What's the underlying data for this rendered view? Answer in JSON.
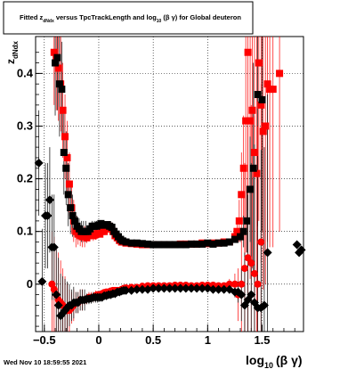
{
  "title": {
    "prefix": "Fitted  z",
    "sub": "dNdx",
    "mid": "  versus TpcTrackLength and log",
    "sub2": "10",
    "suffix": " (β γ) for Global deuteron"
  },
  "timestamp": "Wed Nov 10 18:59:55 2021",
  "ylabel": {
    "main": "z",
    "sub": "dNdx"
  },
  "xlabel": {
    "main": "log",
    "sub": "10",
    "rest": "(β γ)"
  },
  "colors": {
    "red": "#ff0000",
    "black": "#000000",
    "grid": "#000000"
  },
  "chart_data": {
    "type": "scatter",
    "title": "Fitted z_dNdx versus TpcTrackLength and log10(βγ) for Global deuteron",
    "xlabel": "log10(β γ)",
    "ylabel": "z_dNdx",
    "xlim": [
      -0.58,
      1.88
    ],
    "ylim": [
      -0.09,
      0.47
    ],
    "xticks": [
      -0.5,
      0,
      0.5,
      1,
      1.5
    ],
    "xtick_labels": [
      "−0.5",
      "0",
      "0.5",
      "1",
      "1.5"
    ],
    "yticks": [
      0,
      0.1,
      0.2,
      0.3,
      0.4
    ],
    "ytick_labels": [
      "0",
      "0.1",
      "0.2",
      "0.3",
      "0.4"
    ],
    "grid": true,
    "series": [
      {
        "color": "red",
        "marker": "square",
        "x": [
          -0.41,
          -0.39,
          -0.37,
          -0.35,
          -0.33,
          -0.31,
          -0.29,
          -0.27,
          -0.25,
          -0.23,
          -0.21,
          -0.19,
          -0.17,
          -0.15,
          -0.13,
          -0.11,
          -0.09,
          -0.07,
          -0.05,
          -0.03,
          -0.01,
          0.01,
          0.03,
          0.05,
          0.07,
          0.09,
          0.11,
          0.13,
          0.15,
          0.17,
          0.19,
          0.21,
          0.23,
          0.25,
          0.3,
          0.35,
          0.4,
          0.45,
          0.5,
          0.55,
          0.6,
          0.65,
          0.7,
          0.75,
          0.8,
          0.85,
          0.9,
          0.95,
          1.0,
          1.05,
          1.1,
          1.15,
          1.2,
          1.25,
          1.27,
          1.29,
          1.31,
          1.33,
          1.35,
          1.37,
          1.39,
          1.41,
          1.43,
          1.45,
          1.47,
          1.49,
          1.51,
          1.53,
          1.55,
          1.57,
          1.6,
          1.66
        ],
        "y": [
          0.44,
          0.43,
          0.41,
          0.38,
          0.33,
          0.28,
          0.24,
          0.19,
          0.145,
          0.12,
          0.1,
          0.095,
          0.092,
          0.09,
          0.09,
          0.088,
          0.093,
          0.095,
          0.092,
          0.094,
          0.096,
          0.095,
          0.1,
          0.1,
          0.105,
          0.11,
          0.105,
          0.1,
          0.092,
          0.088,
          0.083,
          0.08,
          0.08,
          0.078,
          0.077,
          0.076,
          0.075,
          0.075,
          0.075,
          0.075,
          0.075,
          0.075,
          0.075,
          0.076,
          0.076,
          0.076,
          0.076,
          0.078,
          0.077,
          0.078,
          0.078,
          0.08,
          0.08,
          0.09,
          0.1,
          0.12,
          0.17,
          0.22,
          0.31,
          0.44,
          0.31,
          0.33,
          0.25,
          0.21,
          0.42,
          0.34,
          0.29,
          0.3,
          0.38,
          0.37,
          0.37,
          0.4
        ],
        "yerr": [
          0.1,
          0.1,
          0.1,
          0.09,
          0.09,
          0.08,
          0.07,
          0.06,
          0.05,
          0.04,
          0.03,
          0.02,
          0.02,
          0.02,
          0.02,
          0.01,
          0.01,
          0.01,
          0.01,
          0.01,
          0.01,
          0.005,
          0.005,
          0.005,
          0.005,
          0.005,
          0.005,
          0.005,
          0.005,
          0.005,
          0.005,
          0.005,
          0.005,
          0.005,
          0.004,
          0.004,
          0.004,
          0.004,
          0.004,
          0.004,
          0.004,
          0.004,
          0.004,
          0.004,
          0.004,
          0.004,
          0.004,
          0.004,
          0.004,
          0.004,
          0.004,
          0.005,
          0.005,
          0.01,
          0.02,
          0.04,
          0.08,
          0.1,
          0.25,
          0.3,
          0.3,
          0.3,
          0.3,
          0.3,
          0.3,
          0.3,
          0.3,
          0.3,
          0.3,
          0.3,
          0.3,
          0.3
        ]
      },
      {
        "color": "black",
        "marker": "square",
        "x": [
          -0.4,
          -0.38,
          -0.36,
          -0.34,
          -0.32,
          -0.3,
          -0.28,
          -0.26,
          -0.24,
          -0.22,
          -0.2,
          -0.18,
          -0.16,
          -0.14,
          -0.12,
          -0.1,
          -0.08,
          -0.06,
          -0.04,
          -0.02,
          0.0,
          0.02,
          0.04,
          0.06,
          0.08,
          0.1,
          0.12,
          0.14,
          0.16,
          0.18,
          0.2,
          0.22,
          0.25,
          0.3,
          0.35,
          0.4,
          0.45,
          0.5,
          0.55,
          0.6,
          0.65,
          0.7,
          0.75,
          0.8,
          0.85,
          0.9,
          0.95,
          1.0,
          1.05,
          1.1,
          1.15,
          1.2,
          1.25,
          1.3,
          1.33,
          1.36,
          1.39,
          1.42,
          1.46,
          1.5
        ],
        "y": [
          0.42,
          0.43,
          0.38,
          0.37,
          0.25,
          0.22,
          0.17,
          0.145,
          0.13,
          0.12,
          0.11,
          0.105,
          0.1,
          0.1,
          0.1,
          0.1,
          0.105,
          0.11,
          0.11,
          0.11,
          0.112,
          0.115,
          0.112,
          0.112,
          0.113,
          0.11,
          0.108,
          0.1,
          0.095,
          0.09,
          0.085,
          0.082,
          0.08,
          0.078,
          0.078,
          0.077,
          0.076,
          0.075,
          0.075,
          0.075,
          0.075,
          0.075,
          0.075,
          0.075,
          0.076,
          0.076,
          0.076,
          0.078,
          0.076,
          0.078,
          0.078,
          0.08,
          0.085,
          0.09,
          0.1,
          0.12,
          0.18,
          0.22,
          0.36,
          0.35
        ],
        "yerr": [
          0.1,
          0.1,
          0.1,
          0.09,
          0.08,
          0.07,
          0.06,
          0.05,
          0.04,
          0.03,
          0.02,
          0.02,
          0.02,
          0.02,
          0.02,
          0.01,
          0.01,
          0.01,
          0.01,
          0.01,
          0.005,
          0.005,
          0.005,
          0.005,
          0.005,
          0.005,
          0.005,
          0.005,
          0.005,
          0.005,
          0.005,
          0.005,
          0.004,
          0.004,
          0.004,
          0.004,
          0.004,
          0.004,
          0.004,
          0.004,
          0.004,
          0.004,
          0.004,
          0.004,
          0.004,
          0.004,
          0.004,
          0.004,
          0.004,
          0.004,
          0.004,
          0.005,
          0.005,
          0.01,
          0.03,
          0.06,
          0.1,
          0.2,
          0.25,
          0.25
        ]
      },
      {
        "color": "red",
        "marker": "circle",
        "x": [
          -0.43,
          -0.41,
          -0.39,
          -0.37,
          -0.35,
          -0.33,
          -0.31,
          -0.29,
          -0.27,
          -0.25,
          -0.23,
          -0.21,
          -0.19,
          -0.17,
          -0.15,
          -0.13,
          -0.11,
          -0.09,
          -0.07,
          -0.05,
          -0.03,
          -0.01,
          0.01,
          0.03,
          0.05,
          0.07,
          0.09,
          0.11,
          0.13,
          0.15,
          0.17,
          0.19,
          0.21,
          0.23,
          0.25,
          0.3,
          0.35,
          0.4,
          0.45,
          0.5,
          0.55,
          0.6,
          0.65,
          0.7,
          0.75,
          0.8,
          0.85,
          0.9,
          0.95,
          1.0,
          1.05,
          1.1,
          1.15,
          1.2,
          1.25,
          1.28,
          1.31,
          1.34,
          1.37,
          1.4,
          1.43,
          1.46,
          1.49
        ],
        "y": [
          0.0,
          -0.01,
          -0.02,
          -0.03,
          -0.035,
          -0.04,
          -0.045,
          -0.05,
          -0.05,
          -0.045,
          -0.04,
          -0.035,
          -0.035,
          -0.03,
          -0.03,
          -0.03,
          -0.028,
          -0.025,
          -0.025,
          -0.025,
          -0.022,
          -0.02,
          -0.02,
          -0.018,
          -0.016,
          -0.015,
          -0.015,
          -0.013,
          -0.012,
          -0.012,
          -0.012,
          -0.012,
          -0.01,
          -0.008,
          -0.007,
          -0.006,
          -0.006,
          -0.004,
          -0.003,
          -0.003,
          -0.003,
          -0.003,
          -0.003,
          -0.002,
          -0.002,
          -0.002,
          -0.003,
          -0.003,
          -0.002,
          -0.002,
          -0.002,
          -0.003,
          -0.003,
          0.0,
          0.0,
          -0.02,
          0.0,
          0.03,
          0.05,
          0.04,
          0.02,
          0.0,
          0.08
        ],
        "yerr": [
          0.1,
          0.1,
          0.09,
          0.09,
          0.08,
          0.07,
          0.06,
          0.05,
          0.04,
          0.03,
          0.03,
          0.02,
          0.02,
          0.02,
          0.02,
          0.01,
          0.01,
          0.01,
          0.01,
          0.01,
          0.01,
          0.005,
          0.005,
          0.005,
          0.005,
          0.005,
          0.005,
          0.005,
          0.005,
          0.005,
          0.005,
          0.005,
          0.005,
          0.005,
          0.004,
          0.004,
          0.004,
          0.004,
          0.004,
          0.004,
          0.004,
          0.004,
          0.004,
          0.004,
          0.004,
          0.004,
          0.004,
          0.004,
          0.004,
          0.004,
          0.004,
          0.005,
          0.005,
          0.01,
          0.02,
          0.05,
          0.1,
          0.2,
          0.25,
          0.3,
          0.3,
          0.3,
          0.3
        ]
      },
      {
        "color": "black",
        "marker": "diamond",
        "x": [
          -0.55,
          -0.52,
          -0.49,
          -0.47,
          -0.45,
          -0.43,
          -0.41,
          -0.39,
          -0.37,
          -0.35,
          -0.33,
          -0.31,
          -0.29,
          -0.27,
          -0.25,
          -0.23,
          -0.21,
          -0.19,
          -0.17,
          -0.15,
          -0.13,
          -0.11,
          -0.09,
          -0.07,
          -0.05,
          -0.03,
          -0.01,
          0.01,
          0.03,
          0.05,
          0.07,
          0.09,
          0.11,
          0.13,
          0.15,
          0.17,
          0.19,
          0.21,
          0.23,
          0.25,
          0.3,
          0.35,
          0.4,
          0.45,
          0.5,
          0.55,
          0.6,
          0.65,
          0.7,
          0.75,
          0.8,
          0.85,
          0.9,
          0.95,
          1.0,
          1.05,
          1.1,
          1.15,
          1.2,
          1.25,
          1.28,
          1.31,
          1.34,
          1.37,
          1.4,
          1.43,
          1.46,
          1.49,
          1.52,
          1.55,
          1.82,
          1.84,
          1.86
        ],
        "y": [
          0.23,
          0.005,
          0.13,
          0.13,
          0.16,
          0.07,
          0.07,
          -0.02,
          -0.04,
          -0.06,
          -0.055,
          -0.05,
          -0.045,
          -0.04,
          -0.04,
          -0.035,
          -0.035,
          -0.035,
          -0.03,
          -0.03,
          -0.03,
          -0.028,
          -0.028,
          -0.027,
          -0.025,
          -0.025,
          -0.025,
          -0.025,
          -0.025,
          -0.022,
          -0.022,
          -0.02,
          -0.02,
          -0.018,
          -0.018,
          -0.015,
          -0.015,
          -0.013,
          -0.012,
          -0.012,
          -0.012,
          -0.01,
          -0.01,
          -0.01,
          -0.008,
          -0.008,
          -0.008,
          -0.008,
          -0.008,
          -0.008,
          -0.008,
          -0.008,
          -0.008,
          -0.008,
          -0.008,
          -0.01,
          -0.01,
          -0.01,
          -0.01,
          -0.015,
          -0.015,
          -0.02,
          -0.04,
          -0.03,
          -0.02,
          -0.035,
          -0.045,
          -0.045,
          -0.04,
          0.06,
          0.075,
          0.06,
          0.065
        ],
        "yerr": [
          0.1,
          0.1,
          0.1,
          0.1,
          0.1,
          0.1,
          0.1,
          0.09,
          0.09,
          0.08,
          0.07,
          0.06,
          0.05,
          0.04,
          0.03,
          0.03,
          0.02,
          0.02,
          0.02,
          0.02,
          0.02,
          0.01,
          0.01,
          0.01,
          0.01,
          0.01,
          0.01,
          0.005,
          0.005,
          0.005,
          0.005,
          0.005,
          0.005,
          0.005,
          0.005,
          0.005,
          0.005,
          0.005,
          0.005,
          0.005,
          0.004,
          0.004,
          0.004,
          0.004,
          0.004,
          0.004,
          0.004,
          0.004,
          0.004,
          0.004,
          0.004,
          0.004,
          0.004,
          0.004,
          0.004,
          0.004,
          0.004,
          0.005,
          0.005,
          0.01,
          0.02,
          0.05,
          0.1,
          0.2,
          0.25,
          0.3,
          0.3,
          0.3,
          0.3,
          0.3,
          0.0,
          0.0,
          0.0
        ]
      }
    ]
  }
}
